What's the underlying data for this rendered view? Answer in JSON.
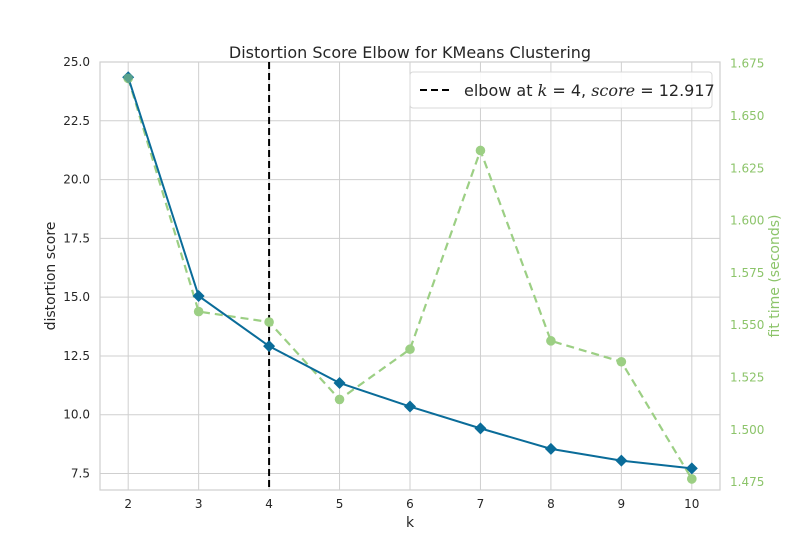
{
  "chart_data": {
    "type": "line",
    "title": "Distortion Score Elbow for KMeans Clustering",
    "xlabel": "k",
    "ylabel": "distortion score",
    "y2label": "fit time (seconds)",
    "x": [
      2,
      3,
      4,
      5,
      6,
      7,
      8,
      9,
      10
    ],
    "xlim": [
      1.6,
      10.4
    ],
    "ylim": [
      6.8,
      25.0
    ],
    "y2lim": [
      1.4712,
      1.6758
    ],
    "yticks": [
      7.5,
      10.0,
      12.5,
      15.0,
      17.5,
      20.0,
      22.5,
      25.0
    ],
    "yticklabels": [
      "7.5",
      "10.0",
      "12.5",
      "15.0",
      "17.5",
      "20.0",
      "22.5",
      "25.0"
    ],
    "y2ticks": [
      1.475,
      1.5,
      1.525,
      1.55,
      1.575,
      1.6,
      1.625,
      1.65,
      1.675
    ],
    "y2ticklabels": [
      "1.475",
      "1.500",
      "1.525",
      "1.550",
      "1.575",
      "1.600",
      "1.625",
      "1.650",
      "1.675"
    ],
    "grid": true,
    "series": [
      {
        "name": "distortion score",
        "axis": "left",
        "marker": "diamond",
        "values": [
          24.35,
          15.05,
          12.917,
          11.35,
          10.35,
          9.42,
          8.55,
          8.05,
          7.72
        ]
      },
      {
        "name": "fit time",
        "axis": "right",
        "marker": "circle",
        "style": "dashed",
        "values": [
          1.668,
          1.5565,
          1.5515,
          1.5145,
          1.5385,
          1.6335,
          1.5425,
          1.5325,
          1.4765
        ]
      }
    ],
    "elbow": {
      "k": 4,
      "score": "12.917",
      "legend_prefix": "elbow at ",
      "legend_k_var": "k",
      "legend_eq": " = 4, ",
      "legend_score_var": "score",
      "legend_score_eq": " = 12.917",
      "legend_position": "top-right"
    },
    "colors": {
      "distortion": "#0a6c99",
      "fit_time": "#9ccf84",
      "fit_time_axis": "#8cc46a",
      "elbow_line": "#000000",
      "grid": "#cfcfcf",
      "axes_edge": "#cfcfcf"
    }
  }
}
